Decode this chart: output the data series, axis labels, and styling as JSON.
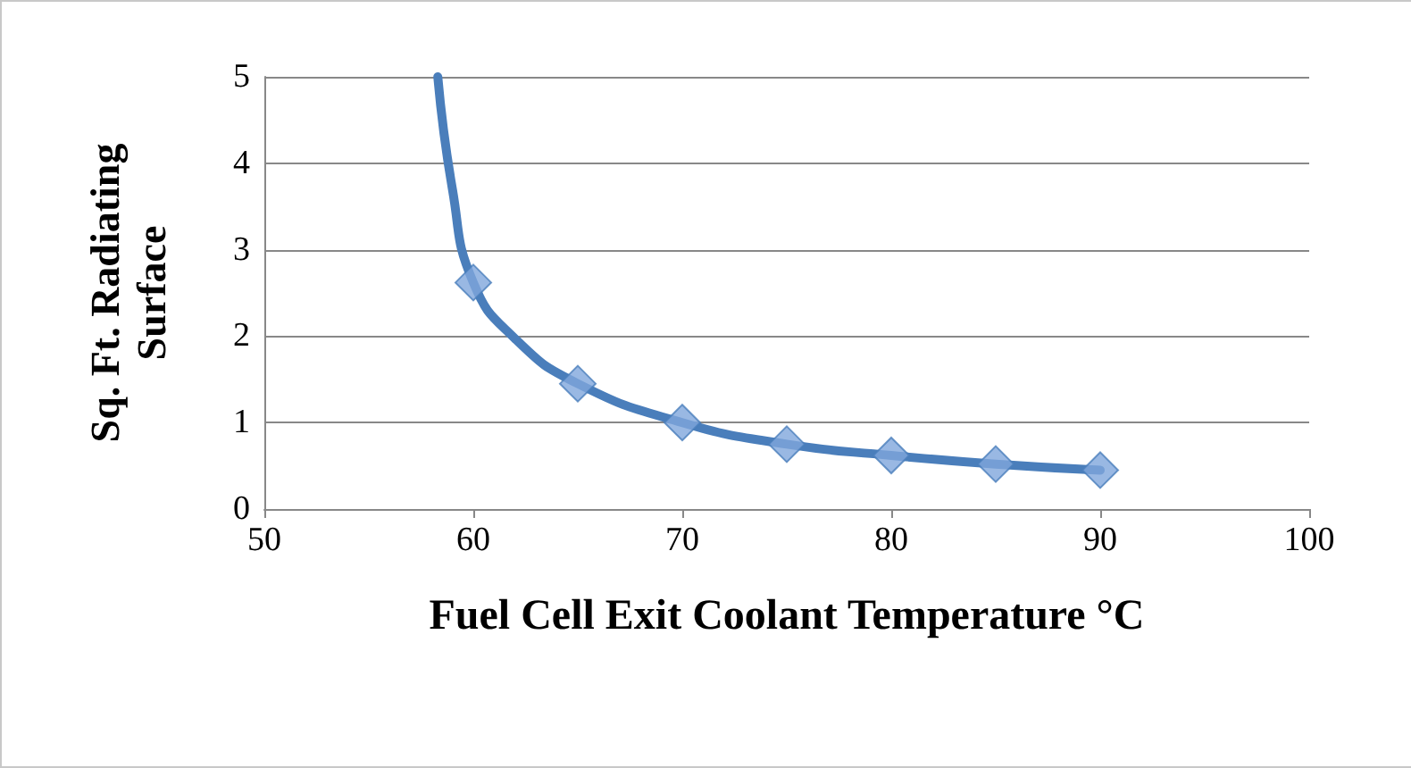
{
  "chart_data": {
    "type": "line",
    "xlabel": "Fuel Cell Exit Coolant Temperature °C",
    "ylabel": "Sq. Ft. Radiating Surface",
    "series": [
      {
        "color": "#4a7ebb",
        "marker": "none",
        "x": [
          58.3,
          59,
          60,
          62,
          65,
          70,
          75,
          80,
          85,
          90
        ],
        "values": [
          5,
          3.7,
          2.62,
          1.97,
          1.45,
          1.0,
          0.75,
          0.62,
          0.52,
          0.45
        ]
      },
      {
        "type": "scatter",
        "color": "#7fa6dc",
        "marker": "diamond",
        "x": [
          60,
          65,
          70,
          75,
          80,
          85,
          90
        ],
        "values": [
          2.62,
          1.45,
          1.0,
          0.75,
          0.62,
          0.52,
          0.45
        ]
      }
    ],
    "xlim": [
      50,
      100
    ],
    "xticks": [
      50,
      60,
      70,
      80,
      90,
      100
    ],
    "ylim": [
      0,
      5
    ],
    "yticks": [
      0,
      1,
      2,
      3,
      4,
      5
    ],
    "grid": "y"
  }
}
